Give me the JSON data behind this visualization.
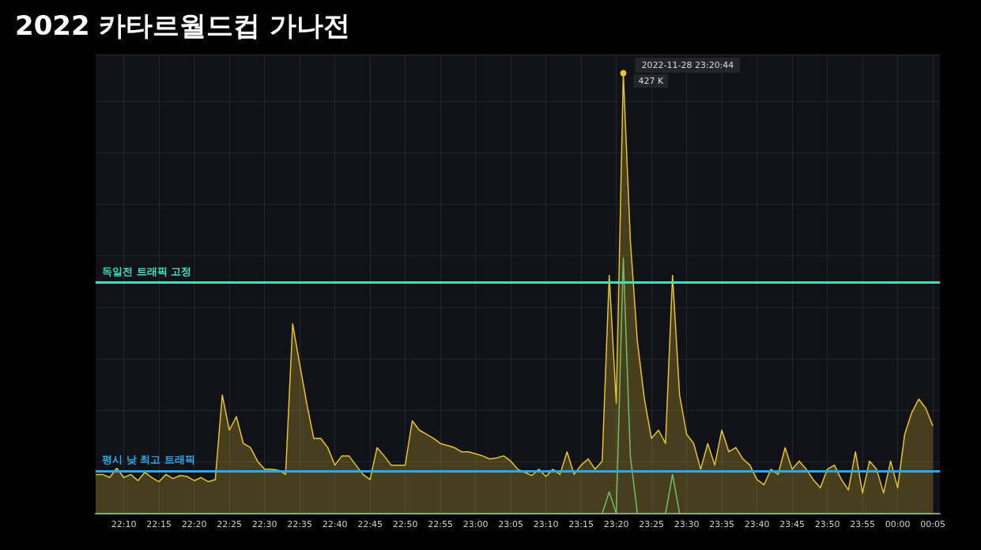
{
  "chart_data": {
    "type": "area",
    "title": "2022 카타르월드컵 가나전",
    "ylim": [
      0,
      445
    ],
    "tick_labels": "x",
    "grid": true,
    "xlim": [
      "2022-11-28T22:06",
      "2022-11-29T00:06"
    ],
    "xticks": [
      {
        "value": "2022-11-28T22:10",
        "label": "22:10"
      },
      {
        "value": "2022-11-28T22:15",
        "label": "22:15"
      },
      {
        "value": "2022-11-28T22:20",
        "label": "22:20"
      },
      {
        "value": "2022-11-28T22:25",
        "label": "22:25"
      },
      {
        "value": "2022-11-28T22:30",
        "label": "22:30"
      },
      {
        "value": "2022-11-28T22:35",
        "label": "22:35"
      },
      {
        "value": "2022-11-28T22:40",
        "label": "22:40"
      },
      {
        "value": "2022-11-28T22:45",
        "label": "22:45"
      },
      {
        "value": "2022-11-28T22:50",
        "label": "22:50"
      },
      {
        "value": "2022-11-28T22:55",
        "label": "22:55"
      },
      {
        "value": "2022-11-28T23:00",
        "label": "23:00"
      },
      {
        "value": "2022-11-28T23:05",
        "label": "23:05"
      },
      {
        "value": "2022-11-28T23:10",
        "label": "23:10"
      },
      {
        "value": "2022-11-28T23:15",
        "label": "23:15"
      },
      {
        "value": "2022-11-28T23:20",
        "label": "23:20"
      },
      {
        "value": "2022-11-28T23:25",
        "label": "23:25"
      },
      {
        "value": "2022-11-28T23:30",
        "label": "23:30"
      },
      {
        "value": "2022-11-28T23:35",
        "label": "23:35"
      },
      {
        "value": "2022-11-28T23:40",
        "label": "23:40"
      },
      {
        "value": "2022-11-28T23:45",
        "label": "23:45"
      },
      {
        "value": "2022-11-28T23:50",
        "label": "23:50"
      },
      {
        "value": "2022-11-28T23:55",
        "label": "23:55"
      },
      {
        "value": "2022-11-29T00:00",
        "label": "00:00"
      },
      {
        "value": "2022-11-29T00:05",
        "label": "00:05"
      }
    ],
    "annotations": [
      {
        "text": "2022-11-28 23:20:44",
        "x": "2022-11-28T23:21",
        "y": 427
      }
    ],
    "ref_lines": [
      {
        "axis": "y",
        "value": 224,
        "label": "독일전 트래픽 고정",
        "color": "#3ee0c0"
      },
      {
        "axis": "y",
        "value": 41,
        "label": "평시 낮 최고 트래픽",
        "color": "#2aa8e8"
      }
    ],
    "series": [
      {
        "color": "#e8c32a",
        "x": [
          "2022-11-28T22:06",
          "2022-11-28T22:07",
          "2022-11-28T22:08",
          "2022-11-28T22:09",
          "2022-11-28T22:10",
          "2022-11-28T22:11",
          "2022-11-28T22:12",
          "2022-11-28T22:13",
          "2022-11-28T22:14",
          "2022-11-28T22:15",
          "2022-11-28T22:16",
          "2022-11-28T22:17",
          "2022-11-28T22:18",
          "2022-11-28T22:19",
          "2022-11-28T22:20",
          "2022-11-28T22:21",
          "2022-11-28T22:22",
          "2022-11-28T22:23",
          "2022-11-28T22:24",
          "2022-11-28T22:25",
          "2022-11-28T22:26",
          "2022-11-28T22:27",
          "2022-11-28T22:28",
          "2022-11-28T22:29",
          "2022-11-28T22:30",
          "2022-11-28T22:31",
          "2022-11-28T22:32",
          "2022-11-28T22:33",
          "2022-11-28T22:34",
          "2022-11-28T22:35",
          "2022-11-28T22:36",
          "2022-11-28T22:37",
          "2022-11-28T22:38",
          "2022-11-28T22:39",
          "2022-11-28T22:40",
          "2022-11-28T22:41",
          "2022-11-28T22:42",
          "2022-11-28T22:43",
          "2022-11-28T22:44",
          "2022-11-28T22:45",
          "2022-11-28T22:46",
          "2022-11-28T22:47",
          "2022-11-28T22:48",
          "2022-11-28T22:49",
          "2022-11-28T22:50",
          "2022-11-28T22:51",
          "2022-11-28T22:52",
          "2022-11-28T22:53",
          "2022-11-28T22:54",
          "2022-11-28T22:55",
          "2022-11-28T22:56",
          "2022-11-28T22:57",
          "2022-11-28T22:58",
          "2022-11-28T22:59",
          "2022-11-28T23:00",
          "2022-11-28T23:01",
          "2022-11-28T23:02",
          "2022-11-28T23:03",
          "2022-11-28T23:04",
          "2022-11-28T23:05",
          "2022-11-28T23:06",
          "2022-11-28T23:07",
          "2022-11-28T23:08",
          "2022-11-28T23:09",
          "2022-11-28T23:10",
          "2022-11-28T23:11",
          "2022-11-28T23:12",
          "2022-11-28T23:13",
          "2022-11-28T23:14",
          "2022-11-28T23:15",
          "2022-11-28T23:16",
          "2022-11-28T23:17",
          "2022-11-28T23:18",
          "2022-11-28T23:19",
          "2022-11-28T23:20",
          "2022-11-28T23:21",
          "2022-11-28T23:22",
          "2022-11-28T23:23",
          "2022-11-28T23:24",
          "2022-11-28T23:25",
          "2022-11-28T23:26",
          "2022-11-28T23:27",
          "2022-11-28T23:28",
          "2022-11-28T23:29",
          "2022-11-28T23:30",
          "2022-11-28T23:31",
          "2022-11-28T23:32",
          "2022-11-28T23:33",
          "2022-11-28T23:34",
          "2022-11-28T23:35",
          "2022-11-28T23:36",
          "2022-11-28T23:37",
          "2022-11-28T23:38",
          "2022-11-28T23:39",
          "2022-11-28T23:40",
          "2022-11-28T23:41",
          "2022-11-28T23:42",
          "2022-11-28T23:43",
          "2022-11-28T23:44",
          "2022-11-28T23:45",
          "2022-11-28T23:46",
          "2022-11-28T23:47",
          "2022-11-28T23:48",
          "2022-11-28T23:49",
          "2022-11-28T23:50",
          "2022-11-28T23:51",
          "2022-11-28T23:52",
          "2022-11-28T23:53",
          "2022-11-28T23:54",
          "2022-11-28T23:55",
          "2022-11-28T23:56",
          "2022-11-28T23:57",
          "2022-11-28T23:58",
          "2022-11-28T23:59",
          "2022-11-29T00:00",
          "2022-11-29T00:01",
          "2022-11-29T00:02",
          "2022-11-29T00:03",
          "2022-11-29T00:04",
          "2022-11-29T00:05"
        ],
        "values": [
          38,
          38,
          35,
          44,
          35,
          38,
          32,
          40,
          35,
          31,
          38,
          34,
          37,
          36,
          32,
          35,
          31,
          33,
          115,
          81,
          94,
          68,
          64,
          51,
          43,
          43,
          42,
          38,
          184,
          145,
          107,
          73,
          73,
          64,
          47,
          56,
          56,
          47,
          38,
          33,
          64,
          56,
          47,
          47,
          47,
          90,
          81,
          77,
          73,
          68,
          66,
          64,
          60,
          60,
          58,
          56,
          53,
          54,
          56,
          51,
          43,
          40,
          37,
          43,
          36,
          43,
          38,
          60,
          38,
          47,
          53,
          43,
          51,
          231,
          107,
          427,
          265,
          167,
          111,
          73,
          81,
          68,
          231,
          115,
          77,
          68,
          43,
          68,
          47,
          81,
          60,
          64,
          53,
          47,
          33,
          28,
          43,
          38,
          64,
          43,
          51,
          43,
          33,
          25,
          43,
          47,
          33,
          23,
          60,
          20,
          51,
          43,
          20,
          51,
          25,
          77,
          98,
          111,
          102,
          85
        ],
        "value_labels": [
          null,
          null,
          null,
          null,
          null,
          null,
          null,
          null,
          null,
          null,
          null,
          null,
          null,
          null,
          null,
          null,
          null,
          null,
          null,
          null,
          null,
          null,
          null,
          null,
          null,
          null,
          null,
          null,
          null,
          null,
          null,
          null,
          null,
          null,
          null,
          null,
          null,
          null,
          null,
          null,
          null,
          null,
          null,
          null,
          null,
          null,
          null,
          null,
          null,
          null,
          null,
          null,
          null,
          null,
          null,
          null,
          null,
          null,
          null,
          null,
          null,
          null,
          null,
          null,
          null,
          null,
          null,
          null,
          null,
          null,
          null,
          null,
          null,
          null,
          null,
          "427 K",
          null,
          null,
          null,
          null,
          null,
          null,
          null,
          null,
          null,
          null,
          null,
          null,
          null,
          null,
          null,
          null,
          null,
          null,
          null,
          null,
          null,
          null,
          null,
          null,
          null,
          null,
          null,
          null,
          null,
          null,
          null,
          null,
          null,
          null,
          null,
          null,
          null,
          null,
          null,
          null,
          null,
          null,
          null,
          null
        ]
      },
      {
        "type": "line",
        "color": "#73bf69",
        "x": [
          "2022-11-28T22:06",
          "2022-11-28T23:18",
          "2022-11-28T23:19",
          "2022-11-28T23:20",
          "2022-11-28T23:21",
          "2022-11-28T23:22",
          "2022-11-28T23:23",
          "2022-11-28T23:27",
          "2022-11-28T23:28",
          "2022-11-28T23:29",
          "2022-11-29T00:05"
        ],
        "values": [
          0,
          0,
          21,
          0,
          248,
          56,
          0,
          0,
          38,
          0,
          0
        ]
      }
    ]
  }
}
